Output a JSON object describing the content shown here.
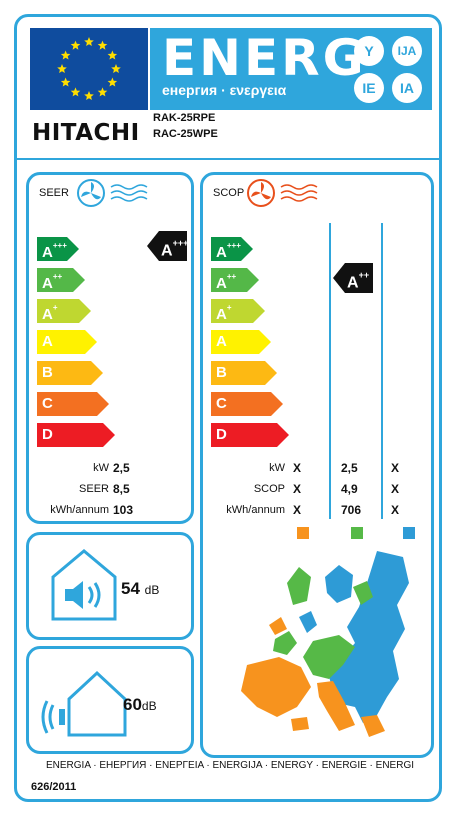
{
  "header": {
    "energy_title": "ENERG",
    "energy_subtitle": "енергия · ενεργεια",
    "lang_codes": [
      "Y",
      "IJA",
      "IE",
      "IA"
    ],
    "brand": "HITACHI",
    "models": [
      "RAK-25RPE",
      "RAC-25WPE"
    ]
  },
  "seer": {
    "label": "SEER",
    "class_badge": {
      "base": "A",
      "sup": "+++"
    },
    "scale": [
      {
        "base": "A",
        "sup": "+++",
        "color": "#0a9447"
      },
      {
        "base": "A",
        "sup": "++",
        "color": "#54b848"
      },
      {
        "base": "A",
        "sup": "+",
        "color": "#bfd730"
      },
      {
        "base": "A",
        "sup": "",
        "color": "#fff200"
      },
      {
        "base": "B",
        "sup": "",
        "color": "#fdb913"
      },
      {
        "base": "C",
        "sup": "",
        "color": "#f37021"
      },
      {
        "base": "D",
        "sup": "",
        "color": "#ed1c24"
      }
    ],
    "rows": [
      {
        "label": "kW",
        "value": "2,5"
      },
      {
        "label": "SEER",
        "value": "8,5"
      },
      {
        "label": "kWh/annum",
        "value": "103"
      }
    ]
  },
  "scop": {
    "label": "SCOP",
    "class_badge": {
      "base": "A",
      "sup": "++"
    },
    "rows": [
      {
        "label": "kW",
        "col1": "X",
        "col2": "2,5",
        "col3": "X"
      },
      {
        "label": "SCOP",
        "col1": "X",
        "col2": "4,9",
        "col3": "X"
      },
      {
        "label": "kWh/annum",
        "col1": "X",
        "col2": "706",
        "col3": "X"
      }
    ],
    "zone_colors": [
      "#f7931e",
      "#56b947",
      "#2e9bd6"
    ]
  },
  "noise": {
    "indoor": {
      "value": "54",
      "unit": "dB"
    },
    "outdoor": {
      "value": "60",
      "unit": "dB"
    }
  },
  "footer": {
    "languages": "ENERGIA · ЕНЕРГИЯ · ΕΝΕΡΓΕΙΑ · ENERGIJA · ENERGY · ENERGIE · ENERGI",
    "regulation": "626/2011"
  }
}
